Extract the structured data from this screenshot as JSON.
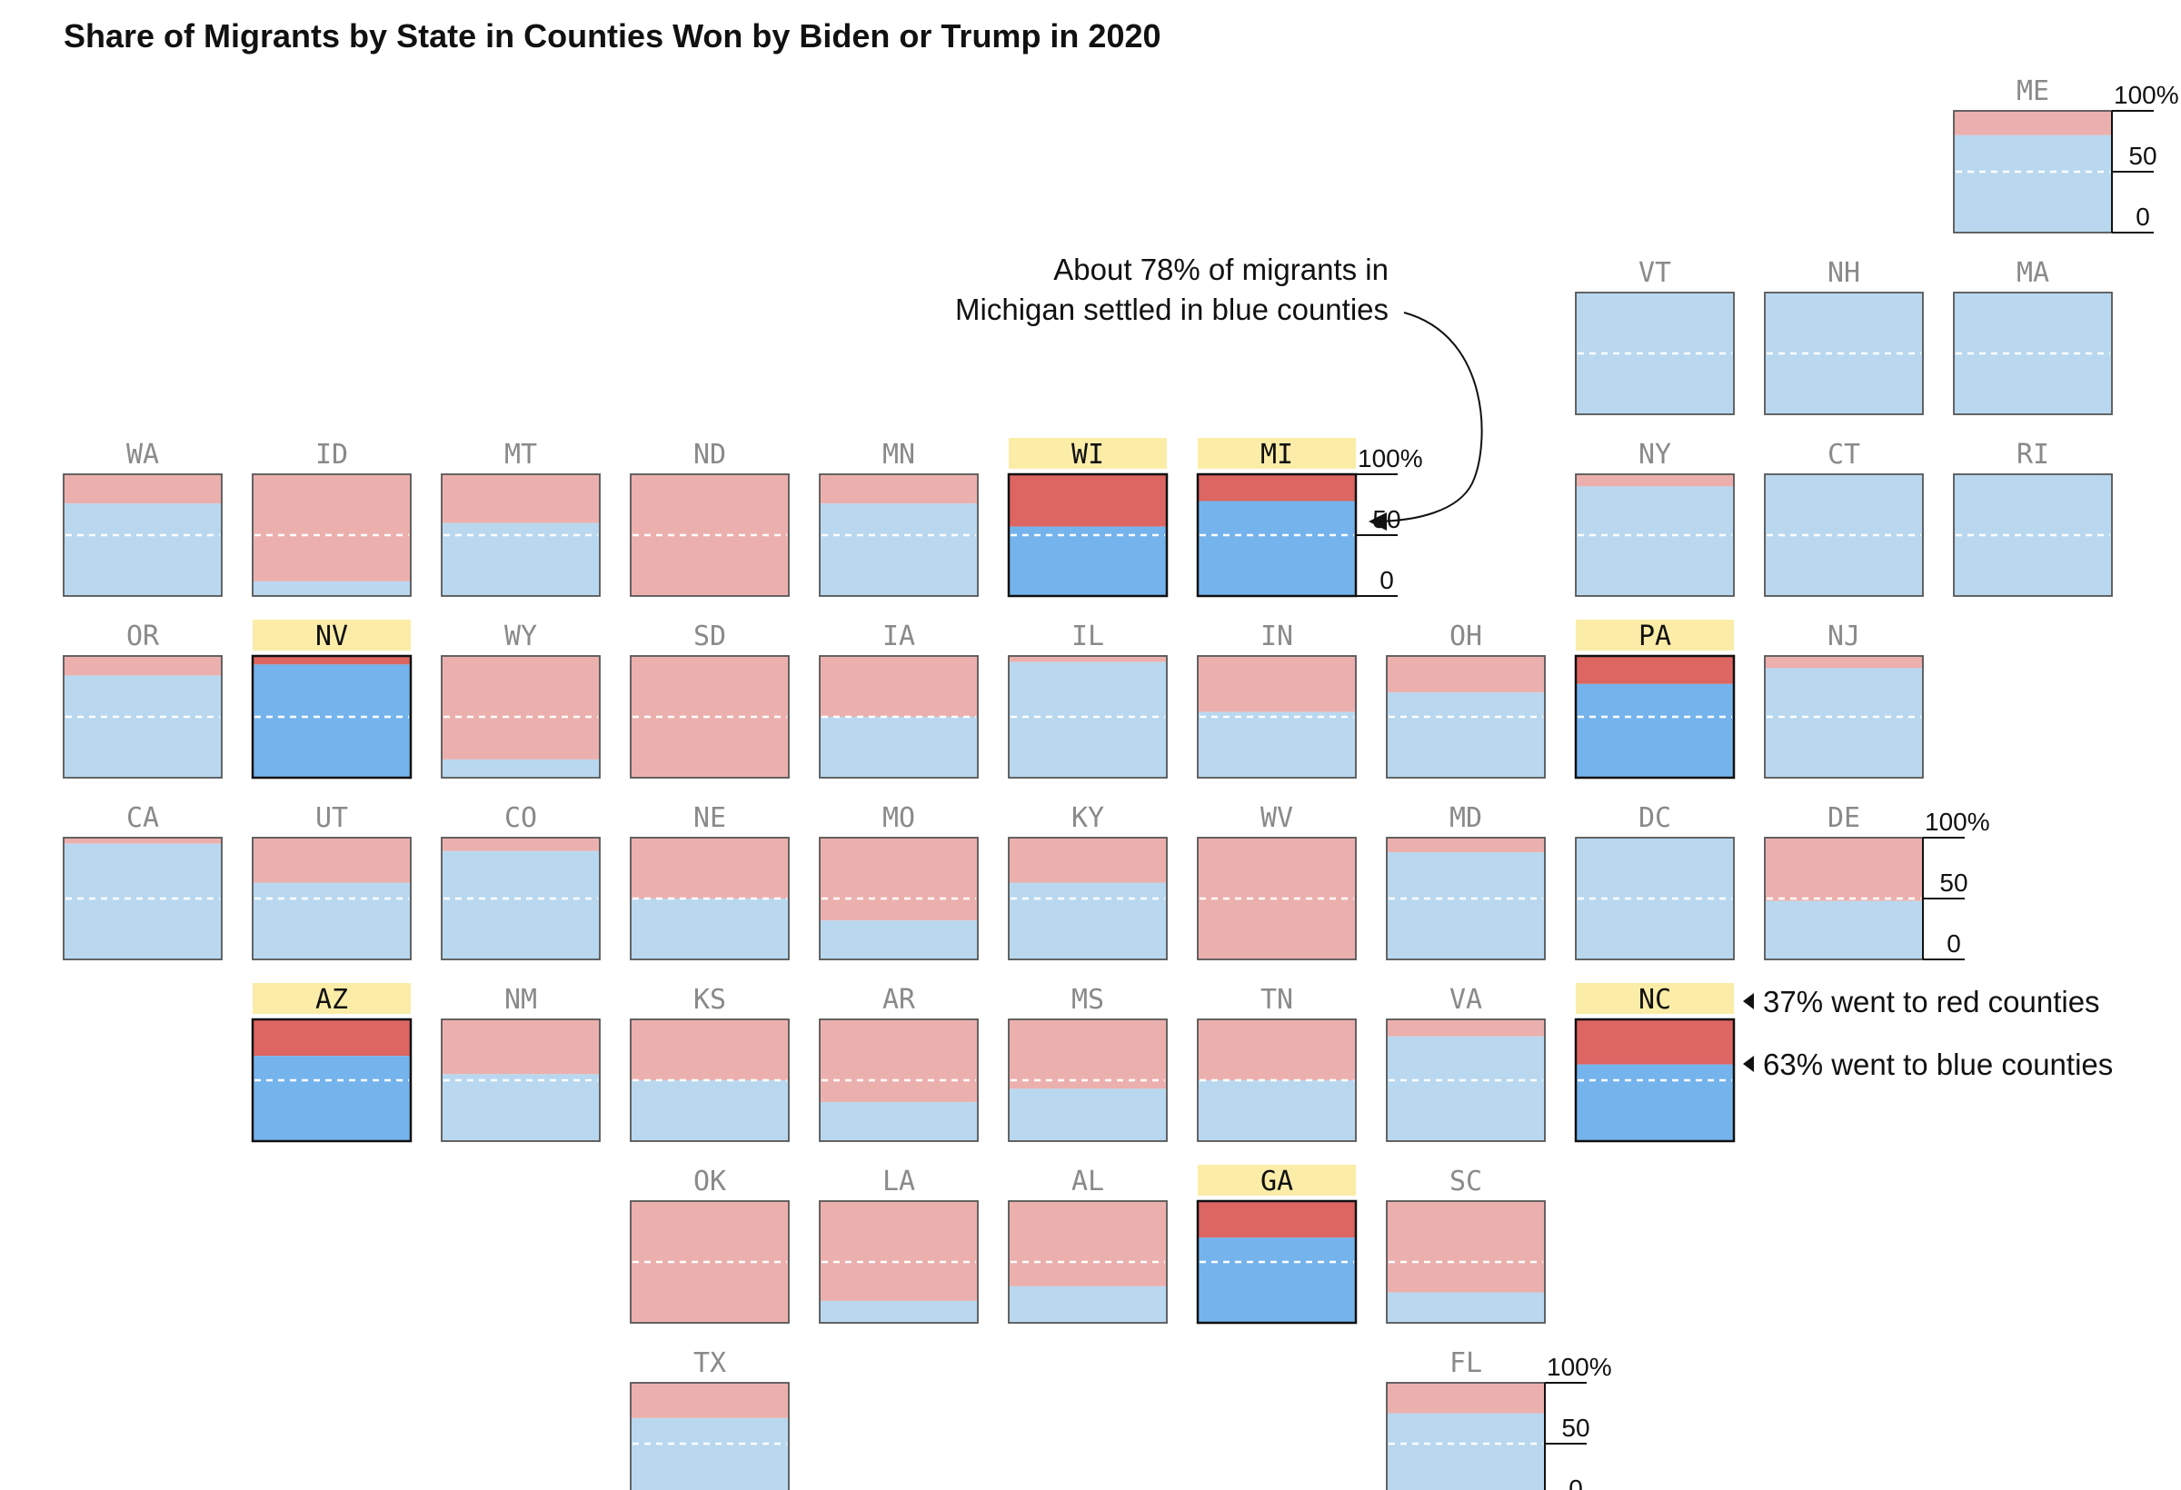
{
  "chart_data": {
    "type": "tile-map-stacked-bar",
    "title": "Share of Migrants by State in Counties Won by Biden or Trump in 2020",
    "scale_labels": [
      "100%",
      "50",
      "0"
    ],
    "ylim": [
      0,
      100
    ],
    "colors": {
      "red_light": "#ebb0ae",
      "blue_light": "#b9d8ef",
      "red_dark": "#dd6562",
      "blue_dark": "#75b3ec",
      "highlight_label_bg": "#fbeda8",
      "midline": "#ffffff",
      "border": "#555555"
    },
    "states": [
      {
        "code": "ME",
        "row": 0,
        "col": 10,
        "blue": 80,
        "swing": false
      },
      {
        "code": "VT",
        "row": 1,
        "col": 8,
        "blue": 100,
        "swing": false
      },
      {
        "code": "NH",
        "row": 1,
        "col": 9,
        "blue": 100,
        "swing": false
      },
      {
        "code": "MA",
        "row": 1,
        "col": 10,
        "blue": 100,
        "swing": false
      },
      {
        "code": "WA",
        "row": 2,
        "col": 0,
        "blue": 76,
        "swing": false
      },
      {
        "code": "ID",
        "row": 2,
        "col": 1,
        "blue": 12,
        "swing": false
      },
      {
        "code": "MT",
        "row": 2,
        "col": 2,
        "blue": 60,
        "swing": false
      },
      {
        "code": "ND",
        "row": 2,
        "col": 3,
        "blue": 0,
        "swing": false
      },
      {
        "code": "MN",
        "row": 2,
        "col": 4,
        "blue": 76,
        "swing": false
      },
      {
        "code": "WI",
        "row": 2,
        "col": 5,
        "blue": 57,
        "swing": true
      },
      {
        "code": "MI",
        "row": 2,
        "col": 6,
        "blue": 78,
        "swing": true
      },
      {
        "code": "NY",
        "row": 2,
        "col": 8,
        "blue": 90,
        "swing": false
      },
      {
        "code": "CT",
        "row": 2,
        "col": 9,
        "blue": 100,
        "swing": false
      },
      {
        "code": "RI",
        "row": 2,
        "col": 10,
        "blue": 100,
        "swing": false
      },
      {
        "code": "OR",
        "row": 3,
        "col": 0,
        "blue": 84,
        "swing": false
      },
      {
        "code": "NV",
        "row": 3,
        "col": 1,
        "blue": 93,
        "swing": true
      },
      {
        "code": "WY",
        "row": 3,
        "col": 2,
        "blue": 15,
        "swing": false
      },
      {
        "code": "SD",
        "row": 3,
        "col": 3,
        "blue": 0,
        "swing": false
      },
      {
        "code": "IA",
        "row": 3,
        "col": 4,
        "blue": 50,
        "swing": false
      },
      {
        "code": "IL",
        "row": 3,
        "col": 5,
        "blue": 95,
        "swing": false
      },
      {
        "code": "IN",
        "row": 3,
        "col": 6,
        "blue": 54,
        "swing": false
      },
      {
        "code": "OH",
        "row": 3,
        "col": 7,
        "blue": 70,
        "swing": false
      },
      {
        "code": "PA",
        "row": 3,
        "col": 8,
        "blue": 77,
        "swing": true
      },
      {
        "code": "NJ",
        "row": 3,
        "col": 9,
        "blue": 90,
        "swing": false
      },
      {
        "code": "CA",
        "row": 4,
        "col": 0,
        "blue": 95,
        "swing": false
      },
      {
        "code": "UT",
        "row": 4,
        "col": 1,
        "blue": 63,
        "swing": false
      },
      {
        "code": "CO",
        "row": 4,
        "col": 2,
        "blue": 89,
        "swing": false
      },
      {
        "code": "NE",
        "row": 4,
        "col": 3,
        "blue": 50,
        "swing": false
      },
      {
        "code": "MO",
        "row": 4,
        "col": 4,
        "blue": 32,
        "swing": false
      },
      {
        "code": "KY",
        "row": 4,
        "col": 5,
        "blue": 63,
        "swing": false
      },
      {
        "code": "WV",
        "row": 4,
        "col": 6,
        "blue": 0,
        "swing": false
      },
      {
        "code": "MD",
        "row": 4,
        "col": 7,
        "blue": 88,
        "swing": false
      },
      {
        "code": "DC",
        "row": 4,
        "col": 8,
        "blue": 100,
        "swing": false
      },
      {
        "code": "DE",
        "row": 4,
        "col": 9,
        "blue": 48,
        "swing": false
      },
      {
        "code": "AZ",
        "row": 5,
        "col": 1,
        "blue": 70,
        "swing": true
      },
      {
        "code": "NM",
        "row": 5,
        "col": 2,
        "blue": 55,
        "swing": false
      },
      {
        "code": "KS",
        "row": 5,
        "col": 3,
        "blue": 50,
        "swing": false
      },
      {
        "code": "AR",
        "row": 5,
        "col": 4,
        "blue": 32,
        "swing": false
      },
      {
        "code": "MS",
        "row": 5,
        "col": 5,
        "blue": 43,
        "swing": false
      },
      {
        "code": "TN",
        "row": 5,
        "col": 6,
        "blue": 50,
        "swing": false
      },
      {
        "code": "VA",
        "row": 5,
        "col": 7,
        "blue": 86,
        "swing": false
      },
      {
        "code": "NC",
        "row": 5,
        "col": 8,
        "blue": 63,
        "swing": true
      },
      {
        "code": "OK",
        "row": 6,
        "col": 3,
        "blue": 0,
        "swing": false
      },
      {
        "code": "LA",
        "row": 6,
        "col": 4,
        "blue": 18,
        "swing": false
      },
      {
        "code": "AL",
        "row": 6,
        "col": 5,
        "blue": 30,
        "swing": false
      },
      {
        "code": "GA",
        "row": 6,
        "col": 6,
        "blue": 70,
        "swing": true
      },
      {
        "code": "SC",
        "row": 6,
        "col": 7,
        "blue": 25,
        "swing": false
      },
      {
        "code": "TX",
        "row": 7,
        "col": 3,
        "blue": 71,
        "swing": false
      },
      {
        "code": "FL",
        "row": 7,
        "col": 7,
        "blue": 75,
        "swing": false
      }
    ],
    "scales_shown_for": [
      "ME",
      "MI",
      "DE",
      "FL"
    ],
    "annotations": {
      "michigan_line1": "About 78% of migrants in",
      "michigan_line2": "Michigan settled in blue counties",
      "nc_red": "37% went to red counties",
      "nc_blue": "63% went to blue counties"
    }
  }
}
